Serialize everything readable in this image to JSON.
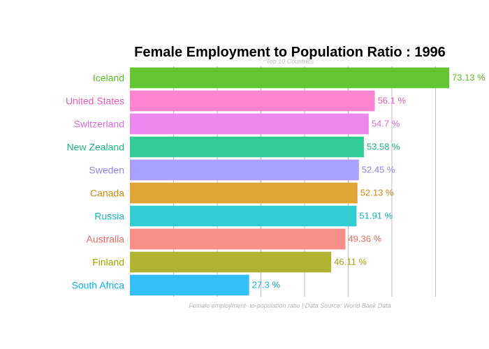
{
  "chart_data": {
    "type": "bar",
    "orientation": "horizontal",
    "title": "Female Employment to Population Ratio : 1996",
    "subtitle": "Top 10 Countries",
    "caption": "Female employment- to-population ratio | Data Source: World Bank Data",
    "value_suffix": " %",
    "xlim": [
      0,
      73.13
    ],
    "grid": true,
    "gridlines": [
      10,
      20,
      30,
      40,
      50,
      60,
      70
    ],
    "categories": [
      "Iceland",
      "United States",
      "Switzerland",
      "New Zealand",
      "Sweden",
      "Canada",
      "Russia",
      "Australia",
      "Finland",
      "South Africa"
    ],
    "values": [
      73.13,
      56.1,
      54.7,
      53.58,
      52.45,
      52.13,
      51.91,
      49.36,
      46.11,
      27.3
    ],
    "value_labels": [
      "73.13 %",
      "56.1 %",
      "54.7 %",
      "53.58 %",
      "52.45 %",
      "52.13 %",
      "51.91 %",
      "49.36 %",
      "46.11 %",
      "27.3 %"
    ],
    "colors": [
      "#64c532",
      "#ff84d2",
      "#ec88f0",
      "#31cc93",
      "#a8a1ff",
      "#e0a534",
      "#32cdd2",
      "#fa8f88",
      "#b0b431",
      "#33bffa"
    ],
    "label_colors": [
      "#5cbd2a",
      "#ee5ac0",
      "#dc6ae0",
      "#1fb880",
      "#8f86f4",
      "#cf8c14",
      "#14b8c0",
      "#f26c63",
      "#a1a500",
      "#14acec"
    ]
  }
}
